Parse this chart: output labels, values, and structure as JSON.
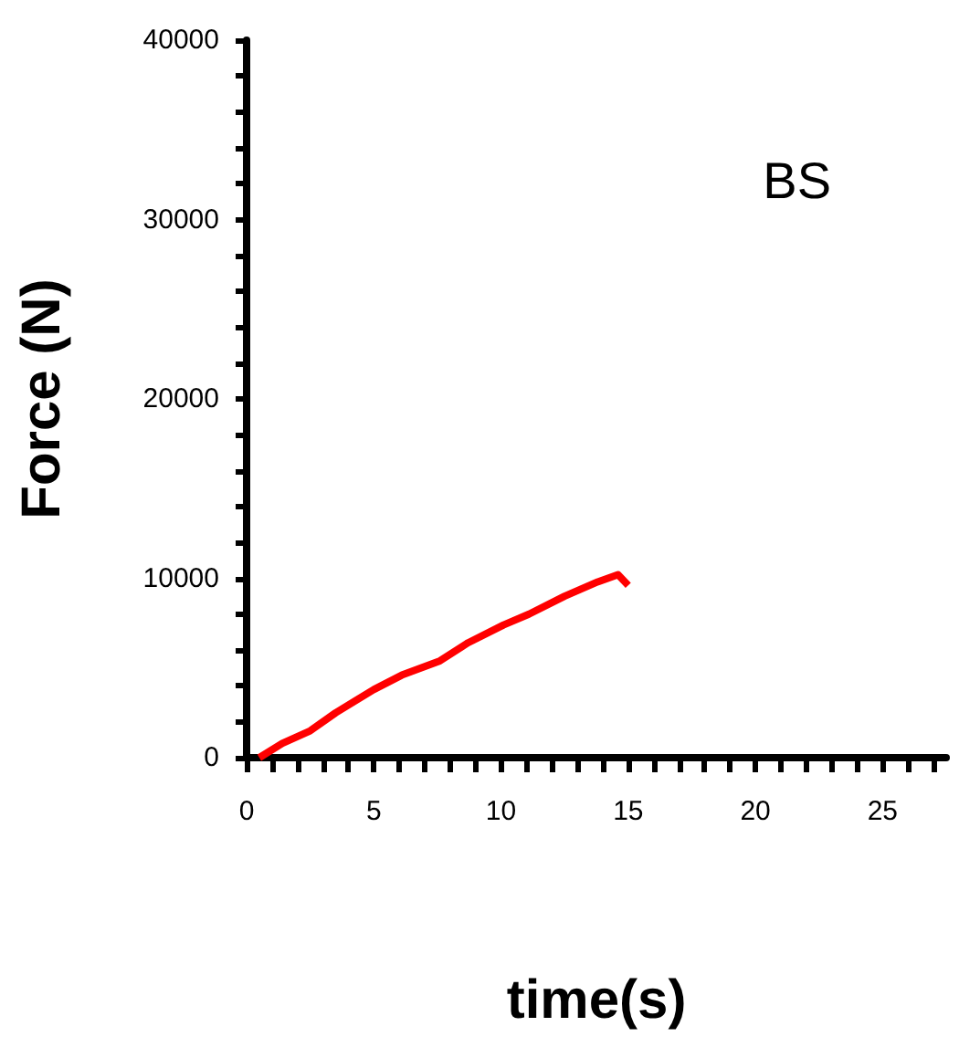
{
  "chart_data": {
    "type": "line",
    "xlabel": "time(s)",
    "ylabel": "Force (N)",
    "annotations": [
      "BS"
    ],
    "xlim": [
      0,
      27.5
    ],
    "ylim": [
      0,
      40000
    ],
    "xticks": [
      0,
      {
        "value": 1,
        "label": null
      },
      {
        "value": 2,
        "label": null
      },
      {
        "value": 3,
        "label": null
      },
      {
        "value": 4,
        "label": null
      },
      5,
      {
        "value": 6,
        "label": null
      },
      {
        "value": 7,
        "label": null
      },
      {
        "value": 8,
        "label": null
      },
      {
        "value": 9,
        "label": null
      },
      10,
      {
        "value": 11,
        "label": null
      },
      {
        "value": 12,
        "label": null
      },
      {
        "value": 13,
        "label": null
      },
      {
        "value": 14,
        "label": null
      },
      15,
      {
        "value": 16,
        "label": null
      },
      {
        "value": 17,
        "label": null
      },
      {
        "value": 18,
        "label": null
      },
      {
        "value": 19,
        "label": null
      },
      20,
      {
        "value": 21,
        "label": null
      },
      {
        "value": 22,
        "label": null
      },
      {
        "value": 23,
        "label": null
      },
      {
        "value": 24,
        "label": null
      },
      25,
      {
        "value": 26,
        "label": null
      },
      {
        "value": 27,
        "label": null
      }
    ],
    "yticks": [
      0,
      {
        "value": 2000,
        "label": null
      },
      {
        "value": 4000,
        "label": null
      },
      {
        "value": 6000,
        "label": null
      },
      {
        "value": 8000,
        "label": null
      },
      10000,
      {
        "value": 12000,
        "label": null
      },
      {
        "value": 14000,
        "label": null
      },
      {
        "value": 16000,
        "label": null
      },
      {
        "value": 18000,
        "label": null
      },
      20000,
      {
        "value": 22000,
        "label": null
      },
      {
        "value": 24000,
        "label": null
      },
      {
        "value": 26000,
        "label": null
      },
      {
        "value": 28000,
        "label": null
      },
      30000,
      {
        "value": 32000,
        "label": null
      },
      {
        "value": 34000,
        "label": null
      },
      {
        "value": 36000,
        "label": null
      },
      {
        "value": 38000,
        "label": null
      },
      40000
    ],
    "series": [
      {
        "color": "#ff0000",
        "x": [
          0.5,
          1.4,
          2.5,
          3.5,
          5,
          6.1,
          7.6,
          8.7,
          10.1,
          11.1,
          12.5,
          13.8,
          14.6,
          15.0
        ],
        "values": [
          0,
          800,
          1500,
          2500,
          3800,
          4600,
          5400,
          6400,
          7400,
          8000,
          9000,
          9800,
          10200,
          9600
        ]
      }
    ]
  }
}
